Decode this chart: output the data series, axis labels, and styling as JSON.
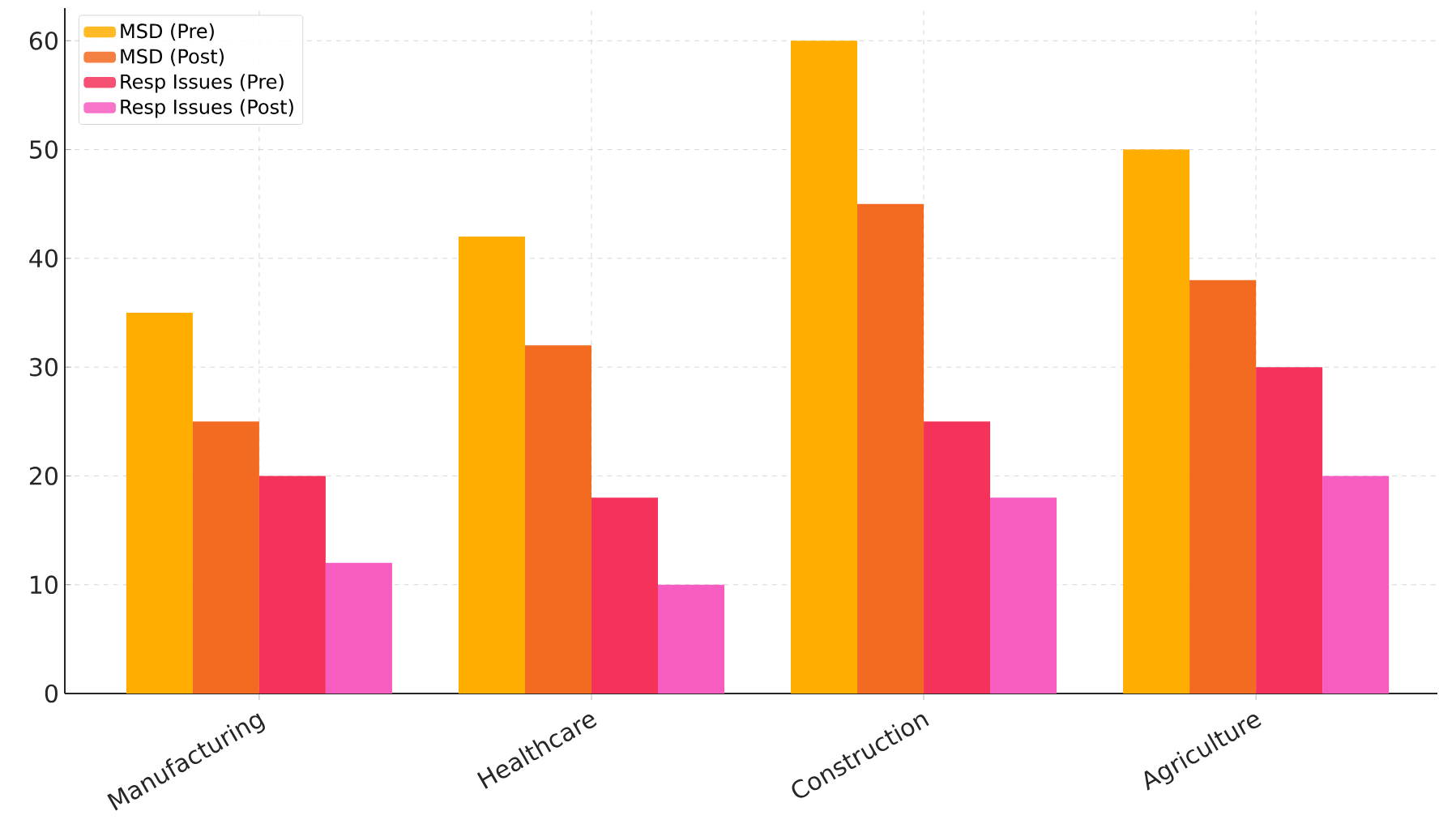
{
  "chart_data": {
    "type": "bar",
    "categories": [
      "Manufacturing",
      "Healthcare",
      "Construction",
      "Agriculture"
    ],
    "series": [
      {
        "name": "MSD (Pre)",
        "color": "#ffae00",
        "values": [
          35,
          42,
          60,
          50
        ]
      },
      {
        "name": "MSD (Post)",
        "color": "#f26b21",
        "values": [
          25,
          32,
          45,
          38
        ]
      },
      {
        "name": "Resp Issues (Pre)",
        "color": "#f5325a",
        "values": [
          20,
          18,
          25,
          30
        ]
      },
      {
        "name": "Resp Issues (Post)",
        "color": "#f75cc0",
        "values": [
          12,
          10,
          18,
          20
        ]
      }
    ],
    "ylim": [
      0,
      63
    ],
    "yticks": [
      0,
      10,
      20,
      30,
      40,
      50,
      60
    ],
    "grid": true,
    "legend": "top left"
  }
}
